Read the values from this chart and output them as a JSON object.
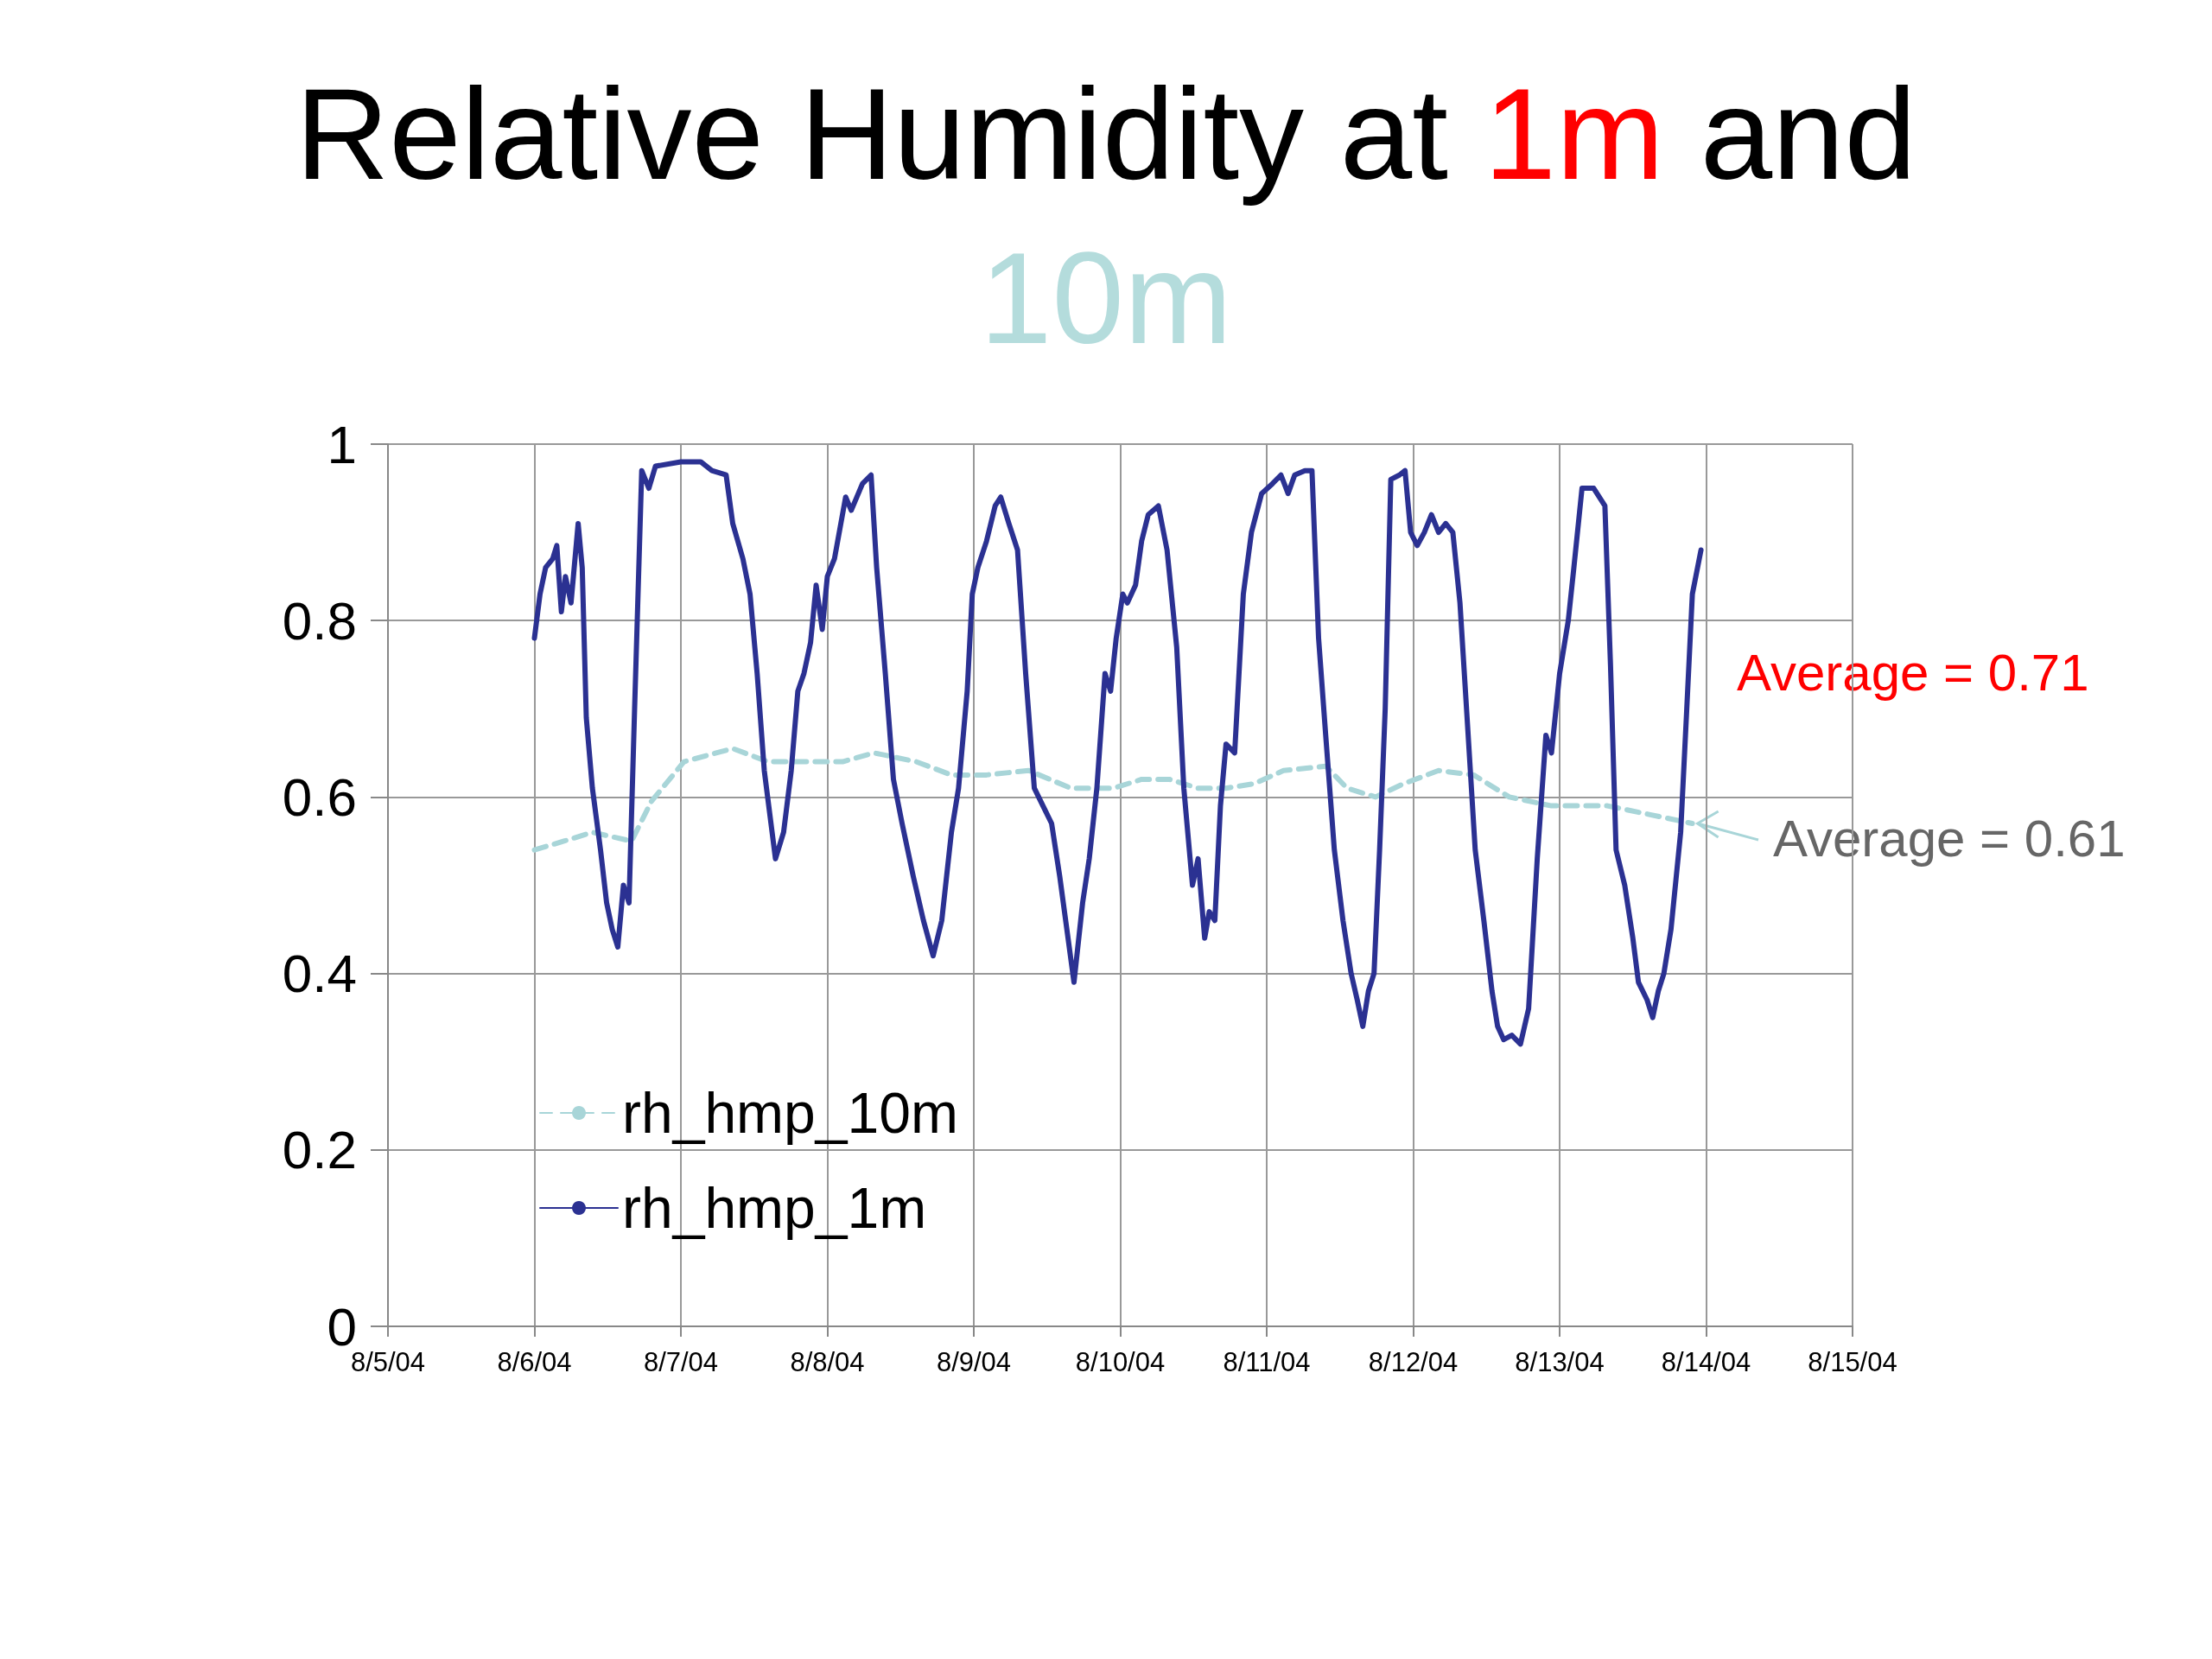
{
  "chart_data": {
    "type": "line",
    "title": "Relative Humidity at 1m and 10m",
    "xlim": [
      "--08-05",
      "--08-15"
    ],
    "xticks": [
      {
        "value": "--08-05",
        "label": "8/5/04"
      },
      {
        "value": "--08-06",
        "label": "8/6/04"
      },
      {
        "value": "--08-07",
        "label": "8/7/04"
      },
      {
        "value": "--08-08",
        "label": "8/8/04"
      },
      {
        "value": "--08-09",
        "label": "8/9/04"
      },
      {
        "value": "--08-10",
        "label": "8/10/04"
      },
      {
        "value": "--08-11",
        "label": "8/11/04"
      },
      {
        "value": "--08-12",
        "label": "8/12/04"
      },
      {
        "value": "--08-13",
        "label": "8/13/04"
      },
      {
        "value": "--08-14",
        "label": "8/14/04"
      },
      {
        "value": "--08-15",
        "label": "8/15/04"
      }
    ],
    "ylim": [
      0,
      1
    ],
    "yticks": [
      0,
      0.2,
      0.4,
      0.6,
      0.8,
      1
    ],
    "grid": true,
    "legend": "bottom left",
    "marker": "none",
    "annotations": [
      "Average = 0.71",
      "Average = 0.61"
    ],
    "series": [
      {
        "name": "rh_hmp_10m",
        "color": "#a8d5d8",
        "line_style": "dashed",
        "x": [
          "--08-06T00:00",
          "--08-06T04:50",
          "--08-06T09:30",
          "--08-06T15:55",
          "--08-06T19:10",
          "--08-07T00:30",
          "--08-07T08:30",
          "--08-07T14:15",
          "--08-07T20:10",
          "--08-08T02:30",
          "--08-08T07:40",
          "--08-08T14:35",
          "--08-08T20:20",
          "--08-09T02:05",
          "--08-09T09:00",
          "--08-09T15:55",
          "--08-09T22:55",
          "--08-10T03:30",
          "--08-10T08:05",
          "--08-10T12:45",
          "--08-10T17:20",
          "--08-10T21:55",
          "--08-11T02:45",
          "--08-11T09:40",
          "--08-11T13:10",
          "--08-11T17:50",
          "--08-11T22:25",
          "--08-12T04:10",
          "--08-12T09:55",
          "--08-12T15:45",
          "--08-12T22:40",
          "--08-13T07:50",
          "--08-13T14:50",
          "--08-13T21:45"
        ],
        "values": [
          0.54,
          0.55,
          0.56,
          0.55,
          0.595,
          0.64,
          0.655,
          0.64,
          0.64,
          0.64,
          0.65,
          0.64,
          0.625,
          0.625,
          0.63,
          0.61,
          0.61,
          0.62,
          0.62,
          0.61,
          0.61,
          0.615,
          0.63,
          0.635,
          0.61,
          0.6,
          0.615,
          0.63,
          0.625,
          0.6,
          0.59,
          0.59,
          0.58,
          0.57
        ]
      },
      {
        "name": "rh_hmp_1m",
        "color": "#2b3192",
        "line_style": "solid",
        "x": [
          "--08-06T00:00",
          "--08-06T00:55",
          "--08-06T01:50",
          "--08-06T03:00",
          "--08-06T03:40",
          "--08-06T04:25",
          "--08-06T05:05",
          "--08-06T06:00",
          "--08-06T07:10",
          "--08-06T07:50",
          "--08-06T08:30",
          "--08-06T09:30",
          "--08-06T10:50",
          "--08-06T11:50",
          "--08-06T12:45",
          "--08-06T13:40",
          "--08-06T14:35",
          "--08-06T15:30",
          "--08-06T16:25",
          "--08-06T17:35",
          "--08-06T18:45",
          "--08-06T19:50",
          "--08-07T00:00",
          "--08-07T03:15",
          "--08-07T05:05",
          "--08-07T07:25",
          "--08-07T08:30",
          "--08-07T10:10",
          "--08-07T11:20",
          "--08-07T12:30",
          "--08-07T13:40",
          "--08-07T15:30",
          "--08-07T16:50",
          "--08-07T18:05",
          "--08-07T19:10",
          "--08-07T20:10",
          "--08-07T21:15",
          "--08-07T22:10",
          "--08-07T23:10",
          "--08-08T00:00",
          "--08-08T01:10",
          "--08-08T03:00",
          "--08-08T03:55",
          "--08-08T05:45",
          "--08-08T07:10",
          "--08-08T08:05",
          "--08-08T09:30",
          "--08-08T10:50",
          "--08-08T12:15",
          "--08-08T14:05",
          "--08-08T15:45",
          "--08-08T17:20",
          "--08-08T18:45",
          "--08-08T20:20",
          "--08-08T21:30",
          "--08-08T22:55",
          "--08-08T23:45",
          "--08-09T00:40",
          "--08-09T02:05",
          "--08-09T03:30",
          "--08-09T04:25",
          "--08-09T05:45",
          "--08-09T07:10",
          "--08-09T08:30",
          "--08-09T09:55",
          "--08-09T11:20",
          "--08-09T12:45",
          "--08-09T14:05",
          "--08-09T15:15",
          "--08-09T16:25",
          "--08-09T17:50",
          "--08-09T18:55",
          "--08-09T20:10",
          "--08-09T21:30",
          "--08-09T22:25",
          "--08-09T23:20",
          "--08-10T00:25",
          "--08-10T01:10",
          "--08-10T02:30",
          "--08-10T03:30",
          "--08-10T04:35",
          "--08-10T06:15",
          "--08-10T07:40",
          "--08-10T09:15",
          "--08-10T10:25",
          "--08-10T11:50",
          "--08-10T12:45",
          "--08-10T13:50",
          "--08-10T14:35",
          "--08-10T15:30",
          "--08-10T16:25",
          "--08-10T17:20",
          "--08-10T18:45",
          "--08-10T20:10",
          "--08-10T21:30",
          "--08-10T23:10",
          "--08-11T00:55",
          "--08-11T02:20",
          "--08-11T03:30",
          "--08-11T04:35",
          "--08-11T06:15",
          "--08-11T07:25",
          "--08-11T08:30",
          "--08-11T09:40",
          "--08-11T11:05",
          "--08-11T12:30",
          "--08-11T13:50",
          "--08-11T14:50",
          "--08-11T15:45",
          "--08-11T16:40",
          "--08-11T17:35",
          "--08-11T18:30",
          "--08-11T19:25",
          "--08-11T20:20",
          "--08-11T21:45",
          "--08-11T22:40",
          "--08-11T23:35",
          "--08-12T00:40",
          "--08-12T01:50",
          "--08-12T03:00",
          "--08-12T04:10",
          "--08-12T05:20",
          "--08-12T06:30",
          "--08-12T07:40",
          "--08-12T08:50",
          "--08-12T10:10",
          "--08-12T11:35",
          "--08-12T12:55",
          "--08-12T13:50",
          "--08-12T14:50",
          "--08-12T16:10",
          "--08-12T17:35",
          "--08-12T18:55",
          "--08-12T20:20",
          "--08-12T21:45",
          "--08-12T22:40",
          "--08-13T00:00",
          "--08-13T01:25",
          "--08-13T02:20",
          "--08-13T03:40",
          "--08-13T05:35",
          "--08-13T07:25",
          "--08-13T08:20",
          "--08-13T09:15",
          "--08-13T10:40",
          "--08-13T12:00",
          "--08-13T12:55",
          "--08-13T14:20",
          "--08-13T15:15",
          "--08-13T16:10",
          "--08-13T17:05",
          "--08-13T18:15",
          "--08-13T19:50",
          "--08-13T20:50",
          "--08-13T21:45",
          "--08-13T23:10"
        ],
        "values": [
          0.78,
          0.83,
          0.86,
          0.87,
          0.885,
          0.81,
          0.85,
          0.82,
          0.91,
          0.86,
          0.69,
          0.61,
          0.54,
          0.48,
          0.45,
          0.43,
          0.5,
          0.48,
          0.7,
          0.97,
          0.95,
          0.975,
          0.98,
          0.98,
          0.97,
          0.965,
          0.91,
          0.87,
          0.83,
          0.74,
          0.63,
          0.53,
          0.56,
          0.63,
          0.72,
          0.74,
          0.775,
          0.84,
          0.79,
          0.85,
          0.87,
          0.94,
          0.925,
          0.955,
          0.965,
          0.86,
          0.74,
          0.62,
          0.57,
          0.51,
          0.46,
          0.42,
          0.46,
          0.56,
          0.61,
          0.72,
          0.83,
          0.86,
          0.89,
          0.93,
          0.94,
          0.91,
          0.88,
          0.74,
          0.61,
          0.59,
          0.57,
          0.51,
          0.45,
          0.39,
          0.48,
          0.53,
          0.61,
          0.74,
          0.72,
          0.78,
          0.83,
          0.82,
          0.84,
          0.89,
          0.92,
          0.93,
          0.88,
          0.77,
          0.61,
          0.5,
          0.53,
          0.44,
          0.47,
          0.46,
          0.59,
          0.66,
          0.65,
          0.83,
          0.9,
          0.944,
          0.955,
          0.965,
          0.944,
          0.965,
          0.97,
          0.97,
          0.78,
          0.67,
          0.54,
          0.46,
          0.4,
          0.37,
          0.34,
          0.38,
          0.4,
          0.54,
          0.7,
          0.96,
          0.965,
          0.97,
          0.9,
          0.885,
          0.9,
          0.92,
          0.9,
          0.91,
          0.9,
          0.82,
          0.69,
          0.54,
          0.46,
          0.38,
          0.34,
          0.325,
          0.33,
          0.32,
          0.36,
          0.53,
          0.67,
          0.65,
          0.74,
          0.8,
          0.86,
          0.95,
          0.95,
          0.93,
          0.75,
          0.54,
          0.5,
          0.44,
          0.39,
          0.37,
          0.35,
          0.38,
          0.4,
          0.45,
          0.56,
          0.7,
          0.83,
          0.88
        ]
      }
    ]
  }
}
